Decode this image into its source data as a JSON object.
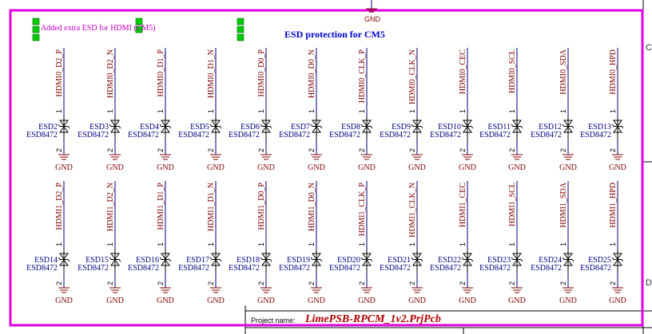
{
  "schematic": {
    "title": "ESD protection for CM5",
    "note": "Added extra ESD for HDMI (CM5)",
    "project_label": "Project name:",
    "project_name": "LimePSB-RPCM_1v2.PrjPcb",
    "zones": {
      "c": "C",
      "d": "D"
    },
    "top_gnd": "GND",
    "part_value": "ESD8472",
    "gnd_label": "GND",
    "pin1": "1",
    "pin2": "2",
    "colors": {
      "frame": "#e000e0",
      "wire": "#000080",
      "net": "#800000",
      "designator": "#000080",
      "marker": "#00cc00"
    },
    "rows": [
      {
        "designators": [
          "ESD2",
          "ESD3",
          "ESD4",
          "ESD5",
          "ESD6",
          "ESD7",
          "ESD8",
          "ESD9",
          "ESD10",
          "ESD11",
          "ESD12",
          "ESD13"
        ],
        "nets": [
          "HDMI0_D2_P",
          "HDMI0_D2_N",
          "HDMI0_D1_P",
          "HDMI0_D1_N",
          "HDMI0_D0_P",
          "HDMI0_D0_N",
          "HDMI0_CLK_P",
          "HDMI0_CLK_N",
          "HDMI0_CEC",
          "HDMI0_SCL",
          "HDMI0_SDA",
          "HDMI0_HPD"
        ]
      },
      {
        "designators": [
          "ESD14",
          "ESD15",
          "ESD16",
          "ESD17",
          "ESD18",
          "ESD19",
          "ESD20",
          "ESD21",
          "ESD22",
          "ESD23",
          "ESD24",
          "ESD25"
        ],
        "nets": [
          "HDMI1_D2_P",
          "HDMI1_D2_N",
          "HDMI1_D1_P",
          "HDMI1_D1_N",
          "HDMI1_D0_P",
          "HDMI1_D0_N",
          "HDMI1_CLK_P",
          "HDMI1_CLK_N",
          "HDMI1_CEC",
          "HDMI1_SCL",
          "HDMI1_SDA",
          "HDMI1_HPD"
        ]
      }
    ]
  }
}
